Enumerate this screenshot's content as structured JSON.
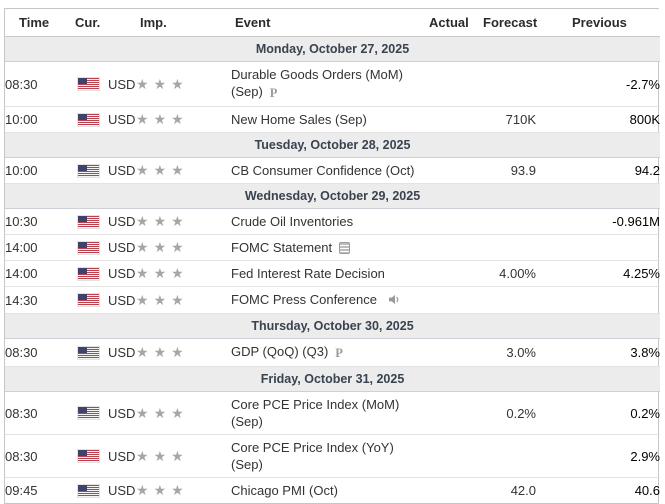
{
  "icons": {
    "preliminary_label": "P",
    "star_glyph": "★",
    "star_color": "#a6a6a6"
  },
  "colors": {
    "day_row_bg": "#ececec",
    "day_row_text": "#39434f",
    "row_border": "#e3e3e3",
    "outer_border": "#c6c6c6",
    "flag_red": "#b8434e",
    "flag_blue": "#41416e"
  },
  "table": {
    "columns": [
      "Time",
      "Cur.",
      "Imp.",
      "Event",
      "Actual",
      "Forecast",
      "Previous"
    ],
    "sections": [
      {
        "date": "Monday, October 27, 2025",
        "rows": [
          {
            "time": "08:30",
            "currency": "USD",
            "importance": 3,
            "event": "Durable Goods Orders (MoM) (Sep)",
            "event_icon": "preliminary",
            "actual": "",
            "forecast": "",
            "previous": "-2.7%"
          },
          {
            "time": "10:00",
            "currency": "USD",
            "importance": 3,
            "event": "New Home Sales (Sep)",
            "event_icon": "",
            "actual": "",
            "forecast": "710K",
            "previous": "800K"
          }
        ]
      },
      {
        "date": "Tuesday, October 28, 2025",
        "rows": [
          {
            "time": "10:00",
            "currency": "USD",
            "importance": 3,
            "event": "CB Consumer Confidence (Oct)",
            "event_icon": "",
            "actual": "",
            "forecast": "93.9",
            "previous": "94.2"
          }
        ]
      },
      {
        "date": "Wednesday, October 29, 2025",
        "rows": [
          {
            "time": "10:30",
            "currency": "USD",
            "importance": 3,
            "event": "Crude Oil Inventories",
            "event_icon": "",
            "actual": "",
            "forecast": "",
            "previous": "-0.961M"
          },
          {
            "time": "14:00",
            "currency": "USD",
            "importance": 3,
            "event": "FOMC Statement",
            "event_icon": "report",
            "actual": "",
            "forecast": "",
            "previous": ""
          },
          {
            "time": "14:00",
            "currency": "USD",
            "importance": 3,
            "event": "Fed Interest Rate Decision",
            "event_icon": "",
            "actual": "",
            "forecast": "4.00%",
            "previous": "4.25%"
          },
          {
            "time": "14:30",
            "currency": "USD",
            "importance": 3,
            "event": "FOMC Press Conference",
            "event_icon": "speaker",
            "actual": "",
            "forecast": "",
            "previous": ""
          }
        ]
      },
      {
        "date": "Thursday, October 30, 2025",
        "rows": [
          {
            "time": "08:30",
            "currency": "USD",
            "importance": 3,
            "event": "GDP (QoQ) (Q3)",
            "event_icon": "preliminary",
            "actual": "",
            "forecast": "3.0%",
            "previous": "3.8%"
          }
        ]
      },
      {
        "date": "Friday, October 31, 2025",
        "rows": [
          {
            "time": "08:30",
            "currency": "USD",
            "importance": 3,
            "event": "Core PCE Price Index (MoM) (Sep)",
            "event_icon": "",
            "actual": "",
            "forecast": "0.2%",
            "previous": "0.2%"
          },
          {
            "time": "08:30",
            "currency": "USD",
            "importance": 3,
            "event": "Core PCE Price Index (YoY) (Sep)",
            "event_icon": "",
            "actual": "",
            "forecast": "",
            "previous": "2.9%"
          },
          {
            "time": "09:45",
            "currency": "USD",
            "importance": 3,
            "event": "Chicago PMI (Oct)",
            "event_icon": "",
            "actual": "",
            "forecast": "42.0",
            "previous": "40.6"
          }
        ]
      }
    ]
  }
}
